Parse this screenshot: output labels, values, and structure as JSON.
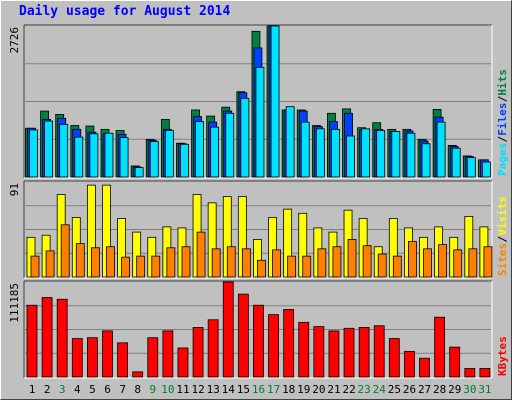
{
  "title": "Daily usage for August 2014",
  "colors": {
    "background": "#c0c0c0",
    "panel": "#c0c0c0",
    "hits": "#008040",
    "files": "#0040ff",
    "pages": "#00e0ff",
    "visits": "#ffff00",
    "sites": "#ff8000",
    "kbytes": "#ff0000",
    "weekday_label": "#000000",
    "weekend_label": "#00802b",
    "title": "#0000ff",
    "grid": "#808080"
  },
  "chart_data": [
    {
      "type": "bar",
      "name": "hits-files-pages",
      "y_max_label": "2726",
      "ylim": [
        0,
        2726
      ],
      "legend": [
        {
          "text": "Pages",
          "color": "#00e0ff"
        },
        {
          "text": "/",
          "color": "#000000"
        },
        {
          "text": "Files",
          "color": "#0040ff"
        },
        {
          "text": "/",
          "color": "#000000"
        },
        {
          "text": "Hits",
          "color": "#008040"
        }
      ],
      "categories": [
        "1",
        "2",
        "3",
        "4",
        "5",
        "6",
        "7",
        "8",
        "9",
        "10",
        "11",
        "12",
        "13",
        "14",
        "15",
        "16",
        "17",
        "18",
        "19",
        "20",
        "21",
        "22",
        "23",
        "24",
        "25",
        "26",
        "27",
        "28",
        "29",
        "30",
        "31"
      ],
      "weekend": [
        false,
        false,
        true,
        false,
        false,
        false,
        false,
        false,
        true,
        true,
        false,
        false,
        false,
        false,
        false,
        true,
        true,
        false,
        false,
        false,
        false,
        false,
        true,
        true,
        false,
        false,
        false,
        false,
        false,
        true,
        true
      ],
      "series": [
        {
          "name": "Hits",
          "values": [
            880,
            1190,
            1130,
            930,
            920,
            860,
            840,
            200,
            680,
            1040,
            610,
            1210,
            1100,
            1260,
            1540,
            2630,
            2726,
            1210,
            1210,
            930,
            1150,
            1230,
            890,
            980,
            860,
            860,
            680,
            1220,
            570,
            380,
            310
          ]
        },
        {
          "name": "Files",
          "values": [
            880,
            1040,
            1060,
            860,
            810,
            780,
            770,
            180,
            660,
            860,
            600,
            1090,
            990,
            1190,
            1520,
            2330,
            2726,
            1210,
            1190,
            910,
            1000,
            1150,
            850,
            860,
            820,
            830,
            650,
            1080,
            550,
            370,
            310
          ]
        },
        {
          "name": "Pages",
          "values": [
            850,
            1010,
            950,
            720,
            780,
            790,
            710,
            170,
            640,
            840,
            590,
            1000,
            900,
            1150,
            1420,
            1980,
            2726,
            1270,
            990,
            870,
            860,
            740,
            870,
            840,
            820,
            790,
            600,
            990,
            520,
            350,
            270
          ]
        }
      ]
    },
    {
      "type": "bar",
      "name": "visits-sites",
      "y_max_label": "91",
      "ylim": [
        0,
        91
      ],
      "legend": [
        {
          "text": "Sites",
          "color": "#ff8000"
        },
        {
          "text": "/",
          "color": "#000000"
        },
        {
          "text": "Visits",
          "color": "#ffff00"
        }
      ],
      "categories": [
        "1",
        "2",
        "3",
        "4",
        "5",
        "6",
        "7",
        "8",
        "9",
        "10",
        "11",
        "12",
        "13",
        "14",
        "15",
        "16",
        "17",
        "18",
        "19",
        "20",
        "21",
        "22",
        "23",
        "24",
        "25",
        "26",
        "27",
        "28",
        "29",
        "30",
        "31"
      ],
      "series": [
        {
          "name": "Visits",
          "values": [
            38,
            40,
            79,
            57,
            88,
            88,
            56,
            43,
            38,
            48,
            47,
            79,
            71,
            77,
            77,
            36,
            57,
            65,
            61,
            47,
            43,
            64,
            56,
            29,
            56,
            47,
            38,
            48,
            38,
            58,
            48
          ]
        },
        {
          "name": "Sites",
          "values": [
            20,
            25,
            50,
            32,
            28,
            29,
            19,
            20,
            20,
            28,
            29,
            43,
            27,
            29,
            27,
            16,
            26,
            20,
            20,
            27,
            29,
            36,
            30,
            22,
            20,
            34,
            27,
            31,
            26,
            27,
            29
          ]
        }
      ]
    },
    {
      "type": "bar",
      "name": "kbytes",
      "y_max_label": "111185",
      "ylim": [
        0,
        111185
      ],
      "legend": [
        {
          "text": "KBytes",
          "color": "#ff0000"
        }
      ],
      "categories": [
        "1",
        "2",
        "3",
        "4",
        "5",
        "6",
        "7",
        "8",
        "9",
        "10",
        "11",
        "12",
        "13",
        "14",
        "15",
        "16",
        "17",
        "18",
        "19",
        "20",
        "21",
        "22",
        "23",
        "24",
        "25",
        "26",
        "27",
        "28",
        "29",
        "30",
        "31"
      ],
      "series": [
        {
          "name": "KBytes",
          "values": [
            84000,
            93000,
            91000,
            45000,
            46000,
            54000,
            40000,
            6000,
            46000,
            54000,
            34000,
            58000,
            67000,
            111185,
            97000,
            84000,
            73000,
            79000,
            64000,
            59000,
            54000,
            57000,
            58000,
            60000,
            45000,
            30000,
            22000,
            70000,
            35000,
            10000,
            10000
          ]
        }
      ]
    }
  ]
}
